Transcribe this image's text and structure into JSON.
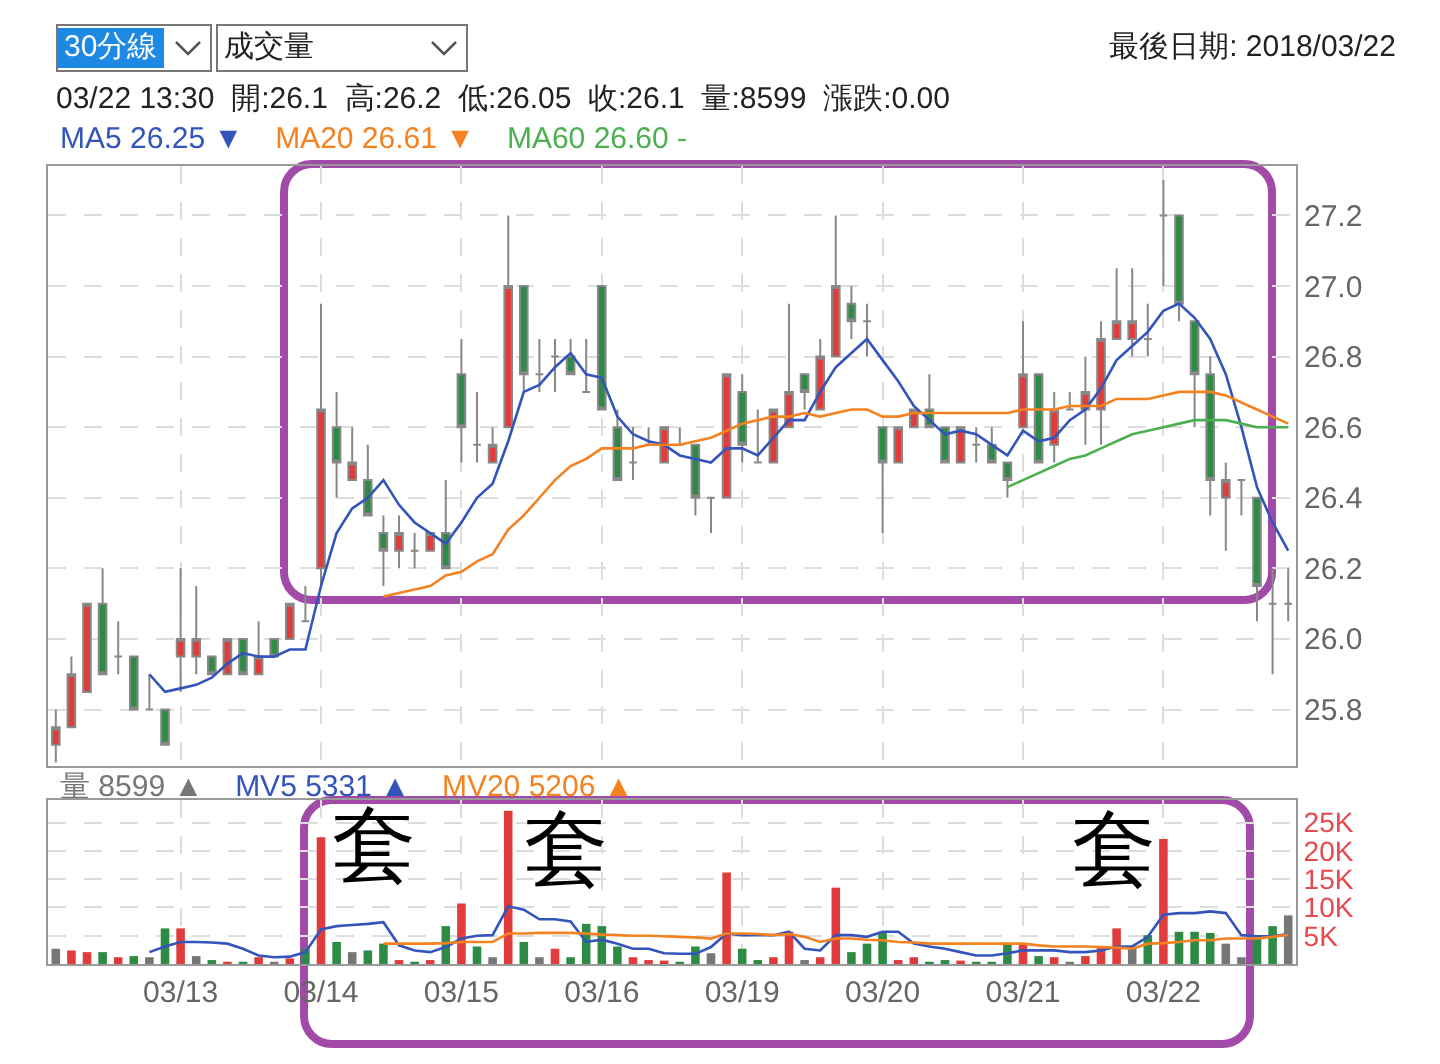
{
  "chart_data": [
    {
      "type": "candlestick",
      "title": "最後日期: 2018/03/22",
      "subtitle": "03/22 13:30  開:26.1  高:26.2  低:26.05  收:26.1  量:8599  漲跌:0.00",
      "annotations": [
        "30分線",
        "成交量"
      ],
      "categories": [
        null,
        null,
        null,
        null,
        null,
        null,
        null,
        null,
        null,
        null,
        null,
        null,
        null,
        null,
        null,
        null,
        null,
        null,
        null,
        null,
        null,
        null,
        null,
        null,
        null,
        null,
        null,
        null,
        null,
        null,
        null,
        null,
        null,
        null,
        null,
        null,
        null,
        null,
        null,
        null,
        null,
        null,
        null,
        null,
        null,
        null,
        null,
        null,
        null,
        null,
        null,
        null,
        null,
        null,
        null,
        null,
        null,
        null,
        null,
        null,
        null,
        null,
        null,
        null,
        null,
        null,
        null,
        null,
        null,
        null,
        null,
        null,
        null,
        null,
        null,
        null,
        null,
        null,
        null,
        null
      ],
      "ohlc": [
        [
          25.7,
          25.8,
          25.65,
          25.75
        ],
        [
          25.75,
          25.95,
          25.75,
          25.9
        ],
        [
          25.85,
          26.1,
          25.85,
          26.1
        ],
        [
          26.1,
          26.2,
          25.9,
          25.9
        ],
        [
          25.95,
          26.05,
          25.9,
          25.95
        ],
        [
          25.95,
          25.95,
          25.8,
          25.8
        ],
        [
          25.8,
          25.9,
          25.8,
          25.8
        ],
        [
          25.8,
          25.8,
          25.7,
          25.7
        ],
        [
          25.95,
          26.2,
          25.85,
          26.0
        ],
        [
          25.95,
          26.15,
          25.9,
          26.0
        ],
        [
          25.95,
          25.95,
          25.9,
          25.9
        ],
        [
          25.9,
          26.0,
          25.9,
          26.0
        ],
        [
          26.0,
          26.0,
          25.9,
          25.9
        ],
        [
          25.9,
          26.05,
          25.9,
          25.95
        ],
        [
          26.0,
          26.0,
          25.95,
          25.95
        ],
        [
          26.0,
          26.1,
          26.0,
          26.1
        ],
        [
          26.05,
          26.15,
          26.05,
          26.05
        ],
        [
          26.2,
          26.95,
          26.15,
          26.65
        ],
        [
          26.6,
          26.7,
          26.4,
          26.5
        ],
        [
          26.45,
          26.6,
          26.45,
          26.5
        ],
        [
          26.45,
          26.55,
          26.35,
          26.35
        ],
        [
          26.3,
          26.35,
          26.15,
          26.25
        ],
        [
          26.25,
          26.35,
          26.2,
          26.3
        ],
        [
          26.25,
          26.3,
          26.2,
          26.25
        ],
        [
          26.25,
          26.3,
          26.25,
          26.3
        ],
        [
          26.3,
          26.45,
          26.2,
          26.2
        ],
        [
          26.75,
          26.85,
          26.5,
          26.6
        ],
        [
          26.55,
          26.7,
          26.5,
          26.55
        ],
        [
          26.5,
          26.6,
          26.5,
          26.55
        ],
        [
          26.6,
          27.2,
          26.6,
          27.0
        ],
        [
          27.0,
          27.0,
          26.7,
          26.75
        ],
        [
          26.75,
          26.85,
          26.7,
          26.75
        ],
        [
          26.8,
          26.85,
          26.7,
          26.8
        ],
        [
          26.8,
          26.85,
          26.75,
          26.75
        ],
        [
          26.7,
          26.85,
          26.7,
          26.7
        ],
        [
          27.0,
          27.0,
          26.65,
          26.65
        ],
        [
          26.6,
          26.65,
          26.45,
          26.45
        ],
        [
          26.5,
          26.6,
          26.45,
          26.5
        ],
        [
          26.55,
          26.6,
          26.55,
          26.55
        ],
        [
          26.5,
          26.6,
          26.5,
          26.6
        ],
        [
          26.55,
          26.6,
          26.55,
          26.55
        ],
        [
          26.55,
          26.55,
          26.35,
          26.4
        ],
        [
          26.4,
          26.4,
          26.3,
          26.4
        ],
        [
          26.4,
          26.75,
          26.4,
          26.75
        ],
        [
          26.7,
          26.75,
          26.5,
          26.55
        ],
        [
          26.5,
          26.65,
          26.5,
          26.5
        ],
        [
          26.5,
          26.65,
          26.5,
          26.65
        ],
        [
          26.6,
          26.95,
          26.6,
          26.7
        ],
        [
          26.75,
          26.75,
          26.65,
          26.7
        ],
        [
          26.65,
          26.85,
          26.65,
          26.8
        ],
        [
          26.8,
          27.2,
          26.8,
          27.0
        ],
        [
          26.95,
          27.0,
          26.85,
          26.9
        ],
        [
          26.9,
          26.95,
          26.8,
          26.9
        ],
        [
          26.6,
          26.6,
          26.3,
          26.5
        ],
        [
          26.5,
          26.6,
          26.5,
          26.6
        ],
        [
          26.6,
          26.65,
          26.6,
          26.65
        ],
        [
          26.65,
          26.75,
          26.6,
          26.6
        ],
        [
          26.6,
          26.6,
          26.5,
          26.5
        ],
        [
          26.5,
          26.6,
          26.5,
          26.6
        ],
        [
          26.55,
          26.6,
          26.5,
          26.55
        ],
        [
          26.55,
          26.6,
          26.5,
          26.5
        ],
        [
          26.5,
          26.5,
          26.4,
          26.45
        ],
        [
          26.6,
          26.9,
          26.6,
          26.75
        ],
        [
          26.75,
          26.75,
          26.5,
          26.5
        ],
        [
          26.55,
          26.7,
          26.5,
          26.65
        ],
        [
          26.65,
          26.7,
          26.65,
          26.65
        ],
        [
          26.65,
          26.8,
          26.55,
          26.7
        ],
        [
          26.65,
          26.9,
          26.55,
          26.85
        ],
        [
          26.85,
          27.05,
          26.85,
          26.9
        ],
        [
          26.85,
          27.05,
          26.8,
          26.9
        ],
        [
          26.85,
          26.95,
          26.8,
          26.85
        ],
        [
          27.2,
          27.3,
          27.0,
          27.2
        ],
        [
          27.2,
          27.2,
          26.9,
          26.95
        ],
        [
          26.9,
          26.9,
          26.6,
          26.75
        ],
        [
          26.75,
          26.8,
          26.35,
          26.45
        ],
        [
          26.4,
          26.5,
          26.25,
          26.45
        ],
        [
          26.45,
          26.45,
          26.35,
          26.45
        ],
        [
          26.4,
          26.4,
          26.05,
          26.15
        ],
        [
          26.1,
          26.2,
          25.9,
          26.1
        ],
        [
          26.1,
          26.2,
          26.05,
          26.1
        ]
      ],
      "series": [
        {
          "name": "MA5 26.25 ▼",
          "type": "line",
          "color": "#3355bb",
          "values": [
            null,
            null,
            null,
            null,
            null,
            null,
            25.9,
            25.85,
            25.86,
            25.87,
            25.89,
            25.93,
            25.96,
            25.95,
            25.95,
            25.97,
            25.97,
            26.15,
            26.3,
            26.37,
            26.4,
            26.45,
            26.38,
            26.33,
            26.3,
            26.27,
            26.33,
            26.4,
            26.44,
            26.56,
            26.7,
            26.72,
            26.77,
            26.81,
            26.75,
            26.74,
            26.63,
            26.58,
            26.56,
            26.55,
            26.52,
            26.51,
            26.5,
            26.54,
            26.54,
            26.52,
            26.57,
            26.62,
            26.62,
            26.7,
            26.77,
            26.81,
            26.85,
            26.79,
            26.73,
            26.66,
            26.62,
            26.58,
            26.59,
            26.58,
            26.55,
            26.52,
            26.59,
            26.56,
            26.57,
            26.62,
            26.65,
            26.71,
            26.79,
            26.83,
            26.87,
            26.93,
            26.95,
            26.91,
            26.85,
            26.75,
            26.6,
            26.43,
            26.33,
            26.25
          ]
        },
        {
          "name": "MA20 26.61 ▼",
          "type": "line",
          "color": "#f58220",
          "values": [
            null,
            null,
            null,
            null,
            null,
            null,
            null,
            null,
            null,
            null,
            null,
            null,
            null,
            null,
            null,
            null,
            null,
            null,
            null,
            null,
            null,
            26.12,
            26.13,
            26.14,
            26.15,
            26.18,
            26.19,
            26.22,
            26.24,
            26.31,
            26.35,
            26.4,
            26.45,
            26.49,
            26.51,
            26.54,
            26.54,
            26.54,
            26.55,
            26.55,
            26.55,
            26.56,
            26.57,
            26.59,
            26.61,
            26.62,
            26.63,
            26.63,
            26.64,
            26.63,
            26.64,
            26.65,
            26.65,
            26.63,
            26.63,
            26.64,
            26.64,
            26.64,
            26.64,
            26.64,
            26.64,
            26.64,
            26.65,
            26.65,
            26.65,
            26.66,
            26.66,
            26.66,
            26.68,
            26.68,
            26.68,
            26.69,
            26.7,
            26.7,
            26.7,
            26.69,
            26.67,
            26.65,
            26.63,
            26.61
          ]
        },
        {
          "name": "MA60 26.60 -",
          "type": "line",
          "color": "#4caf50",
          "values": [
            null,
            null,
            null,
            null,
            null,
            null,
            null,
            null,
            null,
            null,
            null,
            null,
            null,
            null,
            null,
            null,
            null,
            null,
            null,
            null,
            null,
            null,
            null,
            null,
            null,
            null,
            null,
            null,
            null,
            null,
            null,
            null,
            null,
            null,
            null,
            null,
            null,
            null,
            null,
            null,
            null,
            null,
            null,
            null,
            null,
            null,
            null,
            null,
            null,
            null,
            null,
            null,
            null,
            null,
            null,
            null,
            null,
            null,
            null,
            null,
            null,
            26.43,
            26.45,
            26.47,
            26.49,
            26.51,
            26.52,
            26.54,
            26.56,
            26.58,
            26.59,
            26.6,
            26.61,
            26.62,
            26.62,
            26.62,
            26.61,
            26.6,
            26.6,
            26.6
          ]
        }
      ],
      "ylim": [
        25.64,
        27.34
      ],
      "yticks": [
        25.8,
        {
          "value": 26,
          "label": "26.0"
        },
        26.2,
        26.4,
        26.6,
        26.8,
        {
          "value": 27,
          "label": "27.0"
        },
        27.2
      ],
      "grid": true,
      "legend": "top left",
      "tick_labels": "y"
    },
    {
      "type": "bar",
      "annotations": [
        "套",
        "套",
        "套"
      ],
      "categories": [
        null,
        null,
        null,
        null,
        null,
        null,
        null,
        null,
        "03/13",
        null,
        null,
        null,
        null,
        null,
        null,
        null,
        null,
        "03/14",
        null,
        null,
        null,
        null,
        null,
        null,
        null,
        null,
        "03/15",
        null,
        null,
        null,
        null,
        null,
        null,
        null,
        null,
        "03/16",
        null,
        null,
        null,
        null,
        null,
        null,
        null,
        null,
        "03/19",
        null,
        null,
        null,
        null,
        null,
        null,
        null,
        null,
        "03/20",
        null,
        null,
        null,
        null,
        null,
        null,
        null,
        null,
        "03/21",
        null,
        null,
        null,
        null,
        null,
        null,
        null,
        null,
        "03/22",
        null,
        null,
        null,
        null,
        null,
        null,
        null,
        null
      ],
      "series": [
        {
          "name": "量 8599 ▲",
          "type": "bar",
          "colors": [
            "#777777",
            "#e03c3c",
            "#e03c3c",
            "#2e8b45",
            "#e03c3c",
            "#2e8b45",
            "#777777",
            "#2e8b45",
            "#e03c3c",
            "#777777",
            "#2e8b45",
            "#e03c3c",
            "#2e8b45",
            "#e03c3c",
            "#777777",
            "#e03c3c",
            "#2e8b45",
            "#e03c3c",
            "#2e8b45",
            "#777777",
            "#2e8b45",
            "#2e8b45",
            "#e03c3c",
            "#2e8b45",
            "#e03c3c",
            "#2e8b45",
            "#e03c3c",
            "#2e8b45",
            "#777777",
            "#e03c3c",
            "#2e8b45",
            "#777777",
            "#e03c3c",
            "#2e8b45",
            "#2e8b45",
            "#2e8b45",
            "#2e8b45",
            "#e03c3c",
            "#e03c3c",
            "#e03c3c",
            "#2e8b45",
            "#2e8b45",
            "#777777",
            "#e03c3c",
            "#2e8b45",
            "#2e8b45",
            "#e03c3c",
            "#e03c3c",
            "#777777",
            "#e03c3c",
            "#e03c3c",
            "#2e8b45",
            "#2e8b45",
            "#2e8b45",
            "#e03c3c",
            "#e03c3c",
            "#2e8b45",
            "#2e8b45",
            "#e03c3c",
            "#2e8b45",
            "#2e8b45",
            "#2e8b45",
            "#e03c3c",
            "#2e8b45",
            "#e03c3c",
            "#777777",
            "#e03c3c",
            "#e03c3c",
            "#e03c3c",
            "#777777",
            "#2e8b45",
            "#e03c3c",
            "#2e8b45",
            "#2e8b45",
            "#2e8b45",
            "#777777",
            "#777777",
            "#2e8b45",
            "#2e8b45",
            "#777777"
          ],
          "values": [
            2700,
            2400,
            2100,
            2100,
            1200,
            1400,
            1200,
            6300,
            6300,
            1400,
            700,
            400,
            400,
            1200,
            400,
            1000,
            2700,
            22400,
            3900,
            2100,
            2400,
            3600,
            700,
            400,
            700,
            6700,
            10700,
            3100,
            1200,
            27100,
            3900,
            1200,
            2700,
            1200,
            7100,
            6700,
            3100,
            1200,
            700,
            600,
            400,
            3100,
            1900,
            16200,
            2700,
            700,
            1200,
            5700,
            700,
            1200,
            13500,
            2100,
            3600,
            5700,
            700,
            1200,
            400,
            700,
            600,
            400,
            400,
            3600,
            3600,
            1400,
            1200,
            400,
            1400,
            3100,
            6300,
            3100,
            5100,
            22100,
            5700,
            5700,
            5500,
            3600,
            1200,
            4500,
            6700,
            8600
          ]
        },
        {
          "name": "MV5 5331 ▲",
          "type": "line",
          "color": "#3355bb",
          "values": [
            null,
            null,
            null,
            null,
            null,
            null,
            2100,
            3100,
            3900,
            3900,
            3800,
            3600,
            2700,
            1500,
            1200,
            1300,
            2100,
            6100,
            6700,
            6900,
            7100,
            7400,
            3300,
            2400,
            2100,
            3000,
            4500,
            5000,
            5100,
            10200,
            9600,
            7900,
            7900,
            7500,
            3900,
            4300,
            3600,
            2700,
            2700,
            1900,
            1800,
            1800,
            3000,
            5400,
            5100,
            5100,
            5100,
            5700,
            2700,
            2400,
            5100,
            5100,
            4800,
            5700,
            5700,
            3600,
            3100,
            2700,
            2100,
            1500,
            1500,
            1900,
            2400,
            2400,
            2400,
            2100,
            2100,
            2400,
            3100,
            3100,
            4800,
            8700,
            9000,
            9000,
            9300,
            9000,
            5100,
            4900,
            4900,
            5300
          ]
        },
        {
          "name": "MV20 5206 ▲",
          "type": "line",
          "color": "#f58220",
          "values": [
            null,
            null,
            null,
            null,
            null,
            null,
            null,
            null,
            null,
            null,
            null,
            null,
            null,
            null,
            null,
            null,
            null,
            null,
            null,
            null,
            null,
            3600,
            3600,
            3600,
            3600,
            3700,
            3900,
            3900,
            3900,
            5400,
            5400,
            5500,
            5500,
            5500,
            5400,
            5200,
            5100,
            5000,
            5000,
            4900,
            4800,
            4700,
            4500,
            5400,
            5400,
            5300,
            5100,
            5300,
            4800,
            3900,
            4500,
            4500,
            4300,
            4200,
            3900,
            3800,
            3600,
            3600,
            3600,
            3600,
            3600,
            3600,
            3600,
            3300,
            3100,
            3100,
            3100,
            3000,
            2900,
            2700,
            3600,
            3700,
            3900,
            4200,
            4200,
            4500,
            4500,
            4500,
            4800,
            5200
          ]
        }
      ],
      "ylim": [
        0,
        29000
      ],
      "yticks": [
        {
          "value": 5000,
          "label": "5K"
        },
        {
          "value": 10000,
          "label": "10K"
        },
        {
          "value": 15000,
          "label": "15K"
        },
        {
          "value": 20000,
          "label": "20K"
        },
        {
          "value": 25000,
          "label": "25K"
        }
      ],
      "grid": true,
      "legend": "top left"
    }
  ]
}
